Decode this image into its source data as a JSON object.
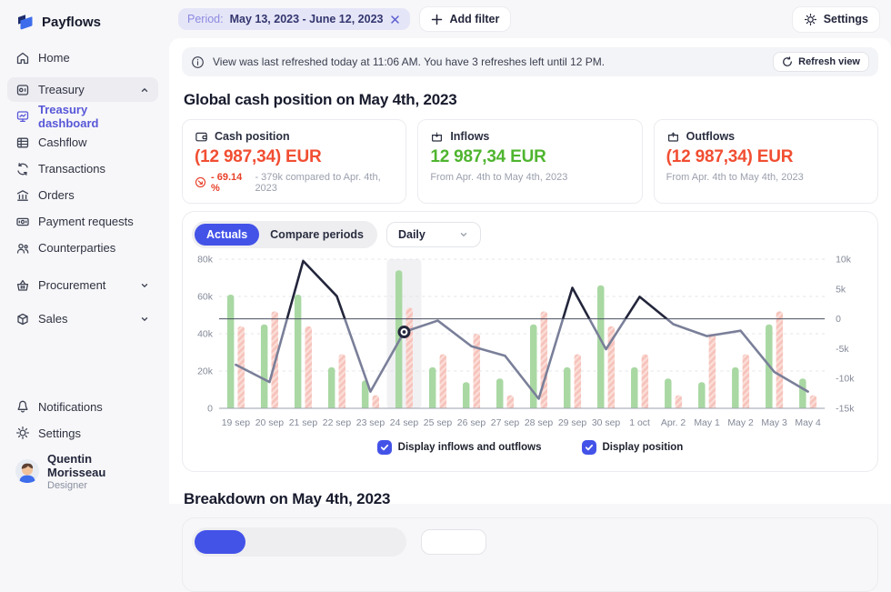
{
  "brand": {
    "name": "Payflows"
  },
  "sidebar": {
    "home": "Home",
    "treasury": "Treasury",
    "treasury_children": [
      "Treasury dashboard",
      "Cashflow",
      "Transactions",
      "Orders",
      "Payment requests",
      "Counterparties"
    ],
    "active_child": "Treasury dashboard",
    "groups": [
      "Procurement",
      "Sales"
    ],
    "footer": [
      "Notifications",
      "Settings"
    ],
    "user_name": "Quentin Morisseau",
    "user_role": "Designer"
  },
  "topbar": {
    "period_label": "Period:",
    "period_value": "May 13, 2023 - June 12, 2023",
    "add_filter_label": "Add filter",
    "settings_label": "Settings"
  },
  "banner": {
    "text": "View was last refreshed today at 11:06 AM. You have 3 refreshes left until 12 PM.",
    "refresh_label": "Refresh view"
  },
  "cash_section": {
    "title": "Global cash position on May 4th, 2023",
    "cards": [
      {
        "label": "Cash position",
        "value": "(12 987,34) EUR",
        "value_color": "#F14E32",
        "delta": "- 69.14 %",
        "delta_note": "- 379k compared to Apr. 4th, 2023"
      },
      {
        "label": "Inflows",
        "value": "12 987,34 EUR",
        "value_color": "#4FB52F",
        "note": "From Apr. 4th to May 4th, 2023"
      },
      {
        "label": "Outflows",
        "value": "(12 987,34) EUR",
        "value_color": "#F14E32",
        "note": "From Apr. 4th to May 4th, 2023"
      }
    ]
  },
  "chart_card": {
    "tab_actuals": "Actuals",
    "tab_compare": "Compare periods",
    "active_tab": "Actuals",
    "frequency": "Daily",
    "checkbox_flows": "Display inflows and outflows",
    "checkbox_position": "Display position",
    "flows_checked": true,
    "position_checked": true
  },
  "chart_data": {
    "type": "bar",
    "categories": [
      "19 sep",
      "20 sep",
      "21 sep",
      "22 sep",
      "23 sep",
      "24 sep",
      "25 sep",
      "26 sep",
      "27 sep",
      "28 sep",
      "29 sep",
      "30 sep",
      "1 oct",
      "Apr. 2",
      "May 1",
      "May 2",
      "May 3",
      "May 4"
    ],
    "series": [
      {
        "name": "inflows",
        "type": "bar",
        "color": "#A9D8A3",
        "values_k": [
          61,
          45,
          61,
          22,
          15,
          74,
          22,
          14,
          16,
          45,
          22,
          66,
          22,
          16,
          14,
          22,
          45,
          16
        ]
      },
      {
        "name": "outflows",
        "type": "bar",
        "color": "#F6C3BB",
        "hatch": true,
        "values_k": [
          44,
          52,
          44,
          29,
          7,
          54,
          29,
          40,
          7,
          52,
          29,
          44,
          29,
          7,
          40,
          29,
          52,
          7
        ]
      },
      {
        "name": "position",
        "type": "line",
        "axis": "right",
        "color_above_zero": "#23263B",
        "color_below_zero": "#7A7F99",
        "values_k": [
          -7.7,
          -10.6,
          9.7,
          3.8,
          -12.2,
          -2.2,
          -0.3,
          -4.6,
          -6.2,
          -13.4,
          5.2,
          -5.1,
          3.7,
          -0.9,
          -2.9,
          -2.0,
          -8.9,
          -12.2
        ]
      }
    ],
    "left_axis": {
      "ticks": [
        "0",
        "20k",
        "40k",
        "60k",
        "80k"
      ],
      "tick_values_k": [
        0,
        20,
        40,
        60,
        80
      ],
      "max_k": 80
    },
    "right_axis": {
      "ticks": [
        "10k",
        "5k",
        "0",
        "-5k",
        "-10k",
        "-15k"
      ],
      "tick_values_k": [
        10,
        5,
        0,
        -5,
        -10,
        -15
      ],
      "max_k": 10,
      "min_k": -15
    },
    "grid": "dashed-horizontal",
    "highlight_index": 5,
    "marker_index": 5,
    "legend_position": "bottom"
  },
  "breakdown": {
    "title": "Breakdown on May 4th, 2023"
  },
  "colors": {
    "accent": "#4353E8",
    "sidebar_link": "#5857D8",
    "negative": "#F14E32",
    "positive": "#4FB52F",
    "bar_green": "#A9D8A3",
    "bar_pink": "#F6C3BB",
    "line_above": "#23263B",
    "line_below": "#7A7F99",
    "background": "#F7F7F9",
    "panel": "#FFFFFF"
  }
}
